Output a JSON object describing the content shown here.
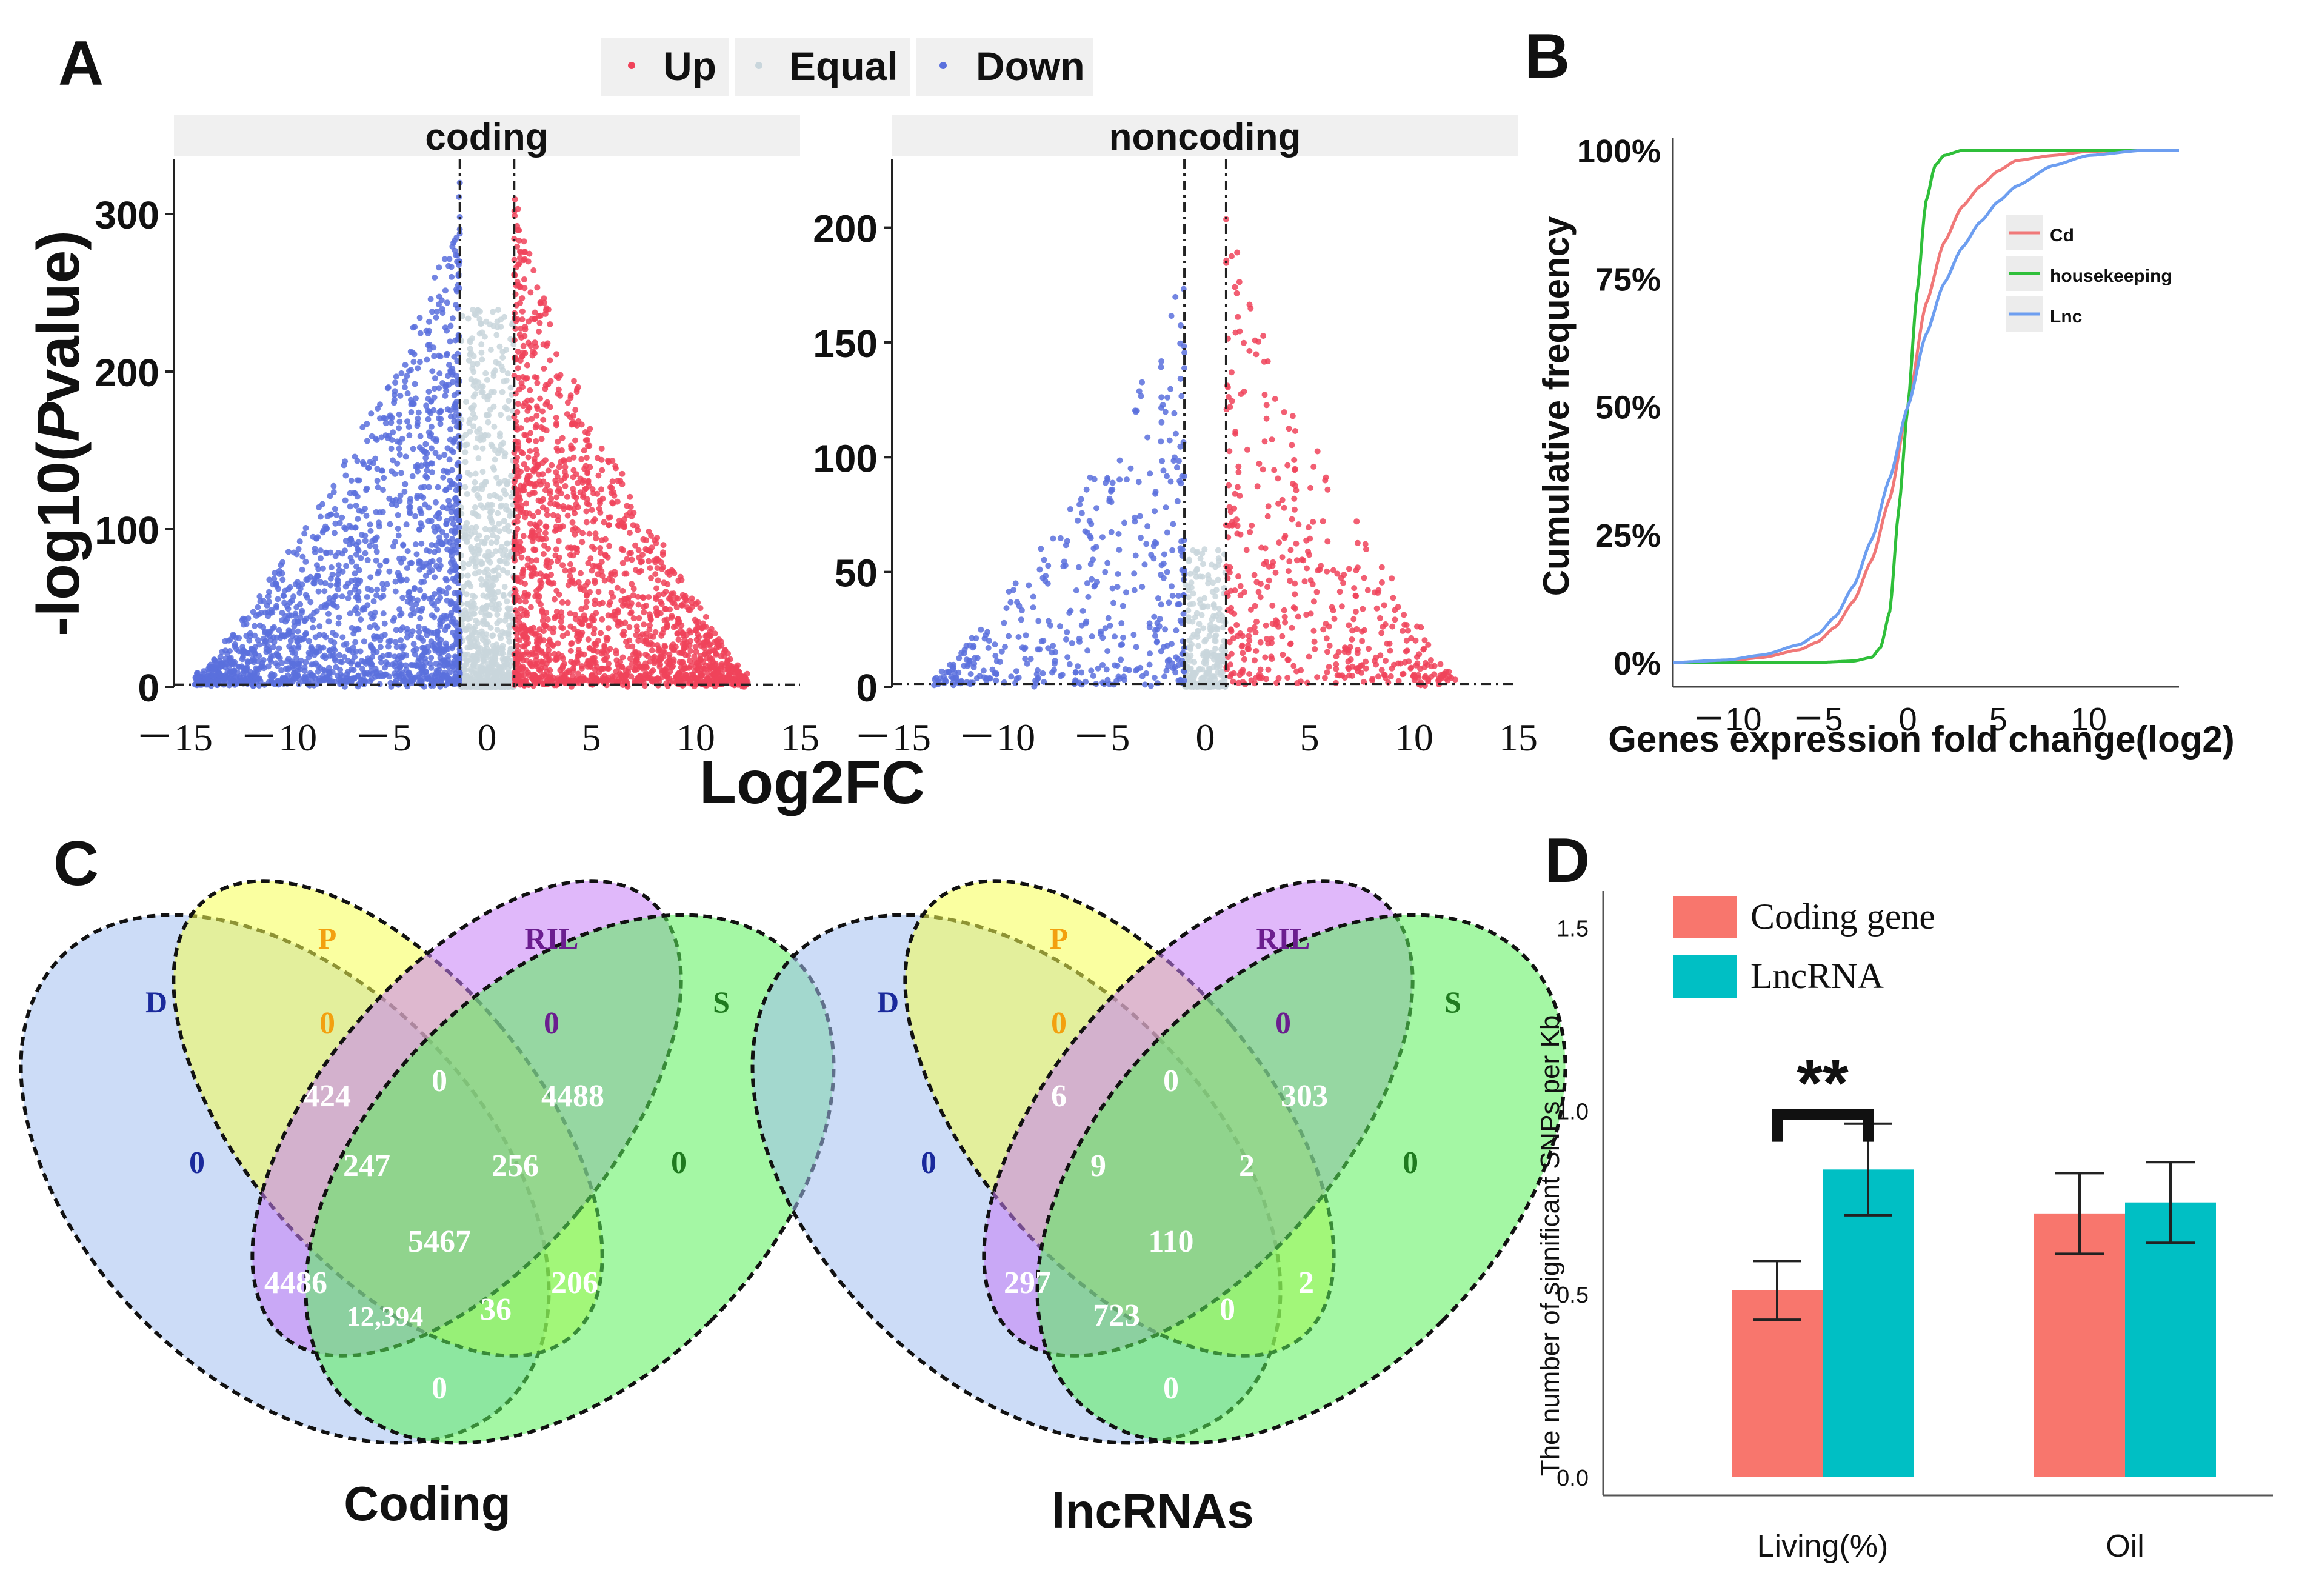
{
  "colors": {
    "up": "#f0435a",
    "down": "#5a70dd",
    "equal": "#c9d6dc",
    "cd": "#f07878",
    "housekeeping": "#2fbf3a",
    "lnc": "#6d9ef0",
    "bar_coding": "#f8766d",
    "bar_lnc": "#00bfc4",
    "venn_D": "#a3bff0",
    "venn_P": "#f5ff52",
    "venn_RIL": "#c77ef5",
    "venn_S": "#5af05a",
    "strip": "#f0f0f0",
    "label_D": "#1a2a9c",
    "label_P": "#f3a00f",
    "label_RIL": "#6b1d8f",
    "label_S": "#1f7a1f"
  },
  "panels": {
    "A": {
      "label": "A",
      "legend": [
        "Up",
        "Equal",
        "Down"
      ],
      "ylabel_prefix": "-log10(",
      "ylabel_italic": "P",
      "ylabel_suffix": "value)",
      "xlabel": "Log2FC"
    },
    "B": {
      "label": "B"
    },
    "C": {
      "label": "C",
      "coding_title": "Coding",
      "lnc_title": "lncRNAs",
      "set_labels": [
        "D",
        "P",
        "RIL",
        "S"
      ],
      "coding_counts": [
        "0",
        "0",
        "0",
        "0",
        "424",
        "0",
        "4488",
        "247",
        "256",
        "5467",
        "4486",
        "12,394",
        "36",
        "206",
        "0"
      ],
      "lnc_counts": [
        "0",
        "0",
        "0",
        "0",
        "6",
        "0",
        "303",
        "9",
        "2",
        "110",
        "297",
        "723",
        "0",
        "2",
        "0"
      ]
    },
    "D": {
      "label": "D"
    }
  },
  "chart_data": [
    {
      "type": "scatter",
      "title": "coding",
      "xlabel": "Log2FC",
      "ylabel": "-log10(Pvalue)",
      "xlim": [
        -15,
        15
      ],
      "ylim": [
        0,
        335
      ],
      "xticks": [
        -15,
        -10,
        -5,
        0,
        5,
        10,
        15
      ],
      "xtick_labels": [
        "－15",
        "－10",
        "－5",
        "0",
        "5",
        "10",
        "15"
      ],
      "yticks": [
        0,
        100,
        200,
        300
      ],
      "ytick_labels": [
        "0",
        "100",
        "200",
        "300"
      ],
      "fc_threshold": [
        -1.3,
        1.3
      ],
      "p_threshold": 1.3,
      "series": [
        {
          "name": "Up",
          "x_range": [
            1.3,
            12.5
          ],
          "y_max": 320
        },
        {
          "name": "Equal",
          "x_range": [
            -1.3,
            1.3
          ],
          "y_max": 240
        },
        {
          "name": "Down",
          "x_range": [
            -14,
            -1.3
          ],
          "y_max": 320
        }
      ]
    },
    {
      "type": "scatter",
      "title": "noncoding",
      "xlabel": "Log2FC",
      "ylabel": "-log10(Pvalue)",
      "xlim": [
        -15,
        15
      ],
      "ylim": [
        0,
        230
      ],
      "xticks": [
        -15,
        -10,
        -5,
        0,
        5,
        10,
        15
      ],
      "xtick_labels": [
        "－15",
        "－10",
        "－5",
        "0",
        "5",
        "10",
        "15"
      ],
      "yticks": [
        0,
        50,
        100,
        150,
        200
      ],
      "ytick_labels": [
        "0",
        "50",
        "100",
        "150",
        "200"
      ],
      "fc_threshold": [
        -1,
        1
      ],
      "p_threshold": 1.3,
      "series": [
        {
          "name": "Up",
          "x_range": [
            1,
            12
          ],
          "y_max": 215
        },
        {
          "name": "Equal",
          "x_range": [
            -1,
            1
          ],
          "y_max": 60
        },
        {
          "name": "Down",
          "x_range": [
            -13,
            -1
          ],
          "y_max": 185
        }
      ]
    },
    {
      "type": "line",
      "title": "",
      "xlabel": "Genes expression fold change(log2)",
      "ylabel": "Cumulative frequency",
      "xlim": [
        -13,
        15
      ],
      "ylim": [
        0,
        1
      ],
      "xticks": [
        -10,
        -5,
        0,
        5,
        10
      ],
      "xtick_labels": [
        "－10",
        "－5",
        "0",
        "5",
        "10"
      ],
      "yticks": [
        0,
        0.25,
        0.5,
        0.75,
        1
      ],
      "ytick_labels": [
        "0%",
        "25%",
        "50%",
        "75%",
        "100%"
      ],
      "legend_position": "top-right",
      "series": [
        {
          "name": "Cd",
          "x": [
            -13,
            -10,
            -8,
            -6,
            -5,
            -4,
            -3,
            -2,
            -1,
            0,
            1,
            2,
            3,
            4,
            5,
            6,
            8,
            10,
            13
          ],
          "y": [
            0,
            0.003,
            0.01,
            0.025,
            0.04,
            0.07,
            0.12,
            0.2,
            0.32,
            0.5,
            0.7,
            0.82,
            0.89,
            0.93,
            0.96,
            0.98,
            0.99,
            0.998,
            1
          ]
        },
        {
          "name": "housekeeping",
          "x": [
            -13,
            -5,
            -3,
            -2,
            -1.5,
            -1,
            -0.5,
            0,
            0.5,
            1,
            1.5,
            2,
            3,
            13
          ],
          "y": [
            0,
            0,
            0.003,
            0.01,
            0.03,
            0.1,
            0.3,
            0.5,
            0.72,
            0.9,
            0.97,
            0.99,
            1,
            1
          ]
        },
        {
          "name": "Lnc",
          "x": [
            -13,
            -10,
            -8,
            -6,
            -5,
            -4,
            -3,
            -2,
            -1,
            0,
            1,
            2,
            3,
            4,
            5,
            6,
            8,
            10,
            13
          ],
          "y": [
            0,
            0.005,
            0.015,
            0.035,
            0.055,
            0.09,
            0.15,
            0.24,
            0.36,
            0.5,
            0.64,
            0.74,
            0.81,
            0.86,
            0.9,
            0.93,
            0.97,
            0.99,
            1
          ]
        }
      ]
    },
    {
      "type": "bar",
      "title": "",
      "xlabel": "",
      "ylabel": "The number of significant SNPs per Kb",
      "categories": [
        "Living(%)",
        "Oil"
      ],
      "ylim": [
        0,
        1.6
      ],
      "yticks": [
        0,
        0.5,
        1.0,
        1.5
      ],
      "ytick_labels": [
        "0.0",
        "0.5",
        "1.0",
        "1.5"
      ],
      "legend_position": "top-left",
      "series": [
        {
          "name": "Coding gene",
          "values": [
            0.51,
            0.72
          ],
          "errors": [
            0.08,
            0.11
          ]
        },
        {
          "name": "LncRNA",
          "values": [
            0.84,
            0.75
          ],
          "errors": [
            0.125,
            0.11
          ]
        }
      ],
      "annotations": [
        {
          "text": "**",
          "category": "Living(%)"
        }
      ]
    }
  ]
}
